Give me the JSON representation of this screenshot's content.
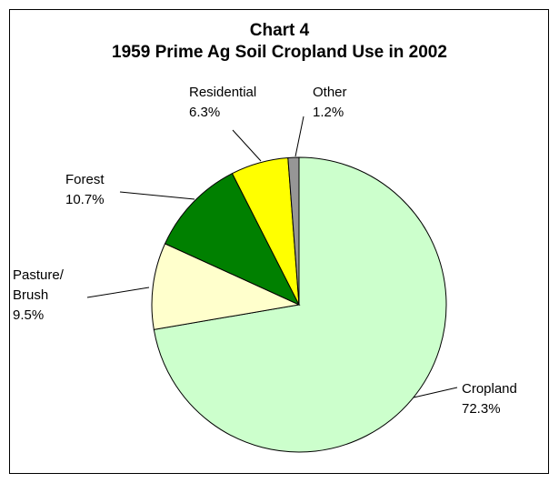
{
  "chart_data": {
    "type": "pie",
    "title": "Chart 4",
    "subtitle": "1959 Prime Ag Soil Cropland Use in 2002",
    "start_angle_deg": 0,
    "direction": "clockwise",
    "slices": [
      {
        "name": "Cropland",
        "value": 72.3,
        "value_label": "72.3%",
        "color": "#ccffcc"
      },
      {
        "name": "Pasture/ Brush",
        "value": 9.5,
        "value_label": "9.5%",
        "color": "#ffffcc"
      },
      {
        "name": "Forest",
        "value": 10.7,
        "value_label": "10.7%",
        "color": "#008000"
      },
      {
        "name": "Residential",
        "value": 6.3,
        "value_label": "6.3%",
        "color": "#ffff00"
      },
      {
        "name": "Other",
        "value": 1.2,
        "value_label": "1.2%",
        "color": "#969696"
      }
    ]
  }
}
